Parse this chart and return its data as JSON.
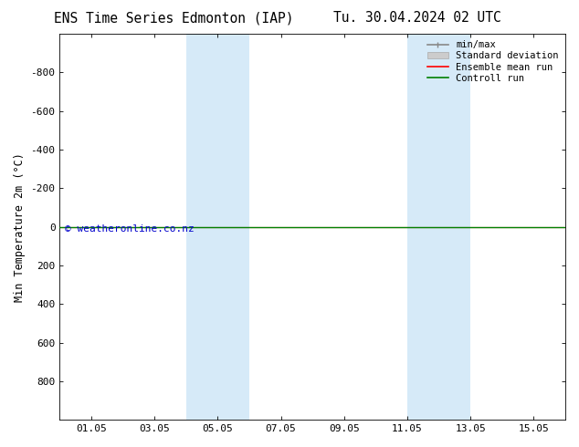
{
  "title_left": "ENS Time Series Edmonton (IAP)",
  "title_right": "Tu. 30.04.2024 02 UTC",
  "ylabel": "Min Temperature 2m (°C)",
  "xtick_labels": [
    "01.05",
    "03.05",
    "05.05",
    "07.05",
    "09.05",
    "11.05",
    "13.05",
    "15.05"
  ],
  "xtick_positions": [
    1,
    3,
    5,
    7,
    9,
    11,
    13,
    15
  ],
  "ylim_top": -1000,
  "ylim_bottom": 1000,
  "ytick_positions": [
    -800,
    -600,
    -400,
    -200,
    0,
    200,
    400,
    600,
    800
  ],
  "ytick_labels": [
    "-800",
    "-600",
    "-400",
    "-200",
    "0",
    "200",
    "400",
    "600",
    "800"
  ],
  "shaded_regions": [
    {
      "x_start": 4,
      "x_end": 6,
      "color": "#d6eaf8"
    },
    {
      "x_start": 11,
      "x_end": 13,
      "color": "#d6eaf8"
    }
  ],
  "green_line_y": 0,
  "green_line_color": "#008000",
  "red_line_y": 0,
  "red_line_color": "#ff0000",
  "watermark": "© weatheronline.co.nz",
  "watermark_color": "#0000cc",
  "legend_entries": [
    {
      "label": "min/max",
      "color": "#888888",
      "lw": 1.2
    },
    {
      "label": "Standard deviation",
      "color": "#bbbbbb",
      "lw": 6
    },
    {
      "label": "Ensemble mean run",
      "color": "#ff0000",
      "lw": 1.2
    },
    {
      "label": "Controll run",
      "color": "#008000",
      "lw": 1.2
    }
  ],
  "bg_color": "#ffffff",
  "plot_bg_color": "#ffffff",
  "title_fontsize": 10.5,
  "label_fontsize": 8.5,
  "tick_fontsize": 8,
  "xlim": [
    0,
    16
  ]
}
